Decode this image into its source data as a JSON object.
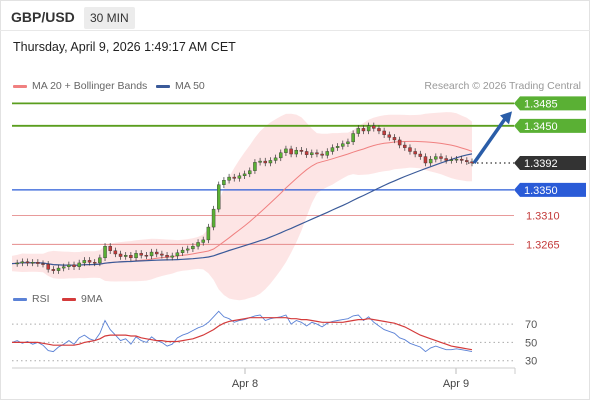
{
  "header": {
    "symbol": "GBP/USD",
    "timeframe": "30 MIN",
    "datetime": "Thursday, April 9, 2026 1:49:17 AM CET"
  },
  "legend": {
    "ma20_label": "MA 20 + Bollinger Bands",
    "ma50_label": "MA 50",
    "credit": "Research © 2026 Trading Central"
  },
  "rsi_legend": {
    "rsi_label": "RSI",
    "ma_label": "9MA"
  },
  "colors": {
    "up": "#5ab034",
    "down": "#c33a3a",
    "support": "#2a5bd7",
    "resistance": "#5a9e1e",
    "ma20": "#f08080",
    "ma50": "#3a5a99",
    "band": "#fde0e0",
    "rsi": "#5b82d6",
    "rsi_ma": "#d43b3b"
  },
  "chart_data": [
    {
      "type": "line",
      "title": "GBP/USD 30 MIN",
      "ylim": [
        1.3225,
        1.3495
      ],
      "x_tick_labels": [
        "Apr 8",
        "Apr 9"
      ],
      "price_levels": [
        {
          "value": 1.3485,
          "label": "1.3485",
          "kind": "resistance"
        },
        {
          "value": 1.345,
          "label": "1.3450",
          "kind": "resistance"
        },
        {
          "value": 1.3392,
          "label": "1.3392",
          "kind": "current"
        },
        {
          "value": 1.335,
          "label": "1.3350",
          "kind": "support"
        },
        {
          "value": 1.331,
          "label": "1.3310",
          "kind": "support-minor"
        },
        {
          "value": 1.3265,
          "label": "1.3265",
          "kind": "support-minor"
        }
      ],
      "price_path": [
        1.3235,
        1.3236,
        1.3238,
        1.3236,
        1.3237,
        1.3235,
        1.3234,
        1.3226,
        1.3224,
        1.3228,
        1.323,
        1.3233,
        1.323,
        1.3236,
        1.324,
        1.3237,
        1.3236,
        1.3244,
        1.3262,
        1.3255,
        1.325,
        1.3246,
        1.3248,
        1.3244,
        1.3251,
        1.3248,
        1.3247,
        1.3253,
        1.325,
        1.3248,
        1.3245,
        1.3247,
        1.3252,
        1.3256,
        1.3258,
        1.3262,
        1.3268,
        1.3272,
        1.3292,
        1.332,
        1.3358,
        1.3365,
        1.337,
        1.3368,
        1.3372,
        1.3375,
        1.338,
        1.3393,
        1.3395,
        1.3392,
        1.3396,
        1.34,
        1.3408,
        1.3414,
        1.3406,
        1.3412,
        1.341,
        1.3405,
        1.3408,
        1.3406,
        1.3404,
        1.341,
        1.3416,
        1.3418,
        1.3422,
        1.3425,
        1.3438,
        1.3446,
        1.3442,
        1.345,
        1.3446,
        1.3442,
        1.3436,
        1.3432,
        1.3428,
        1.342,
        1.3416,
        1.341,
        1.3406,
        1.3402,
        1.3392,
        1.3398,
        1.3402,
        1.3399,
        1.3396,
        1.3397,
        1.3398,
        1.3396,
        1.3394,
        1.3392
      ],
      "forecast_arrow": {
        "from": 1.3392,
        "to": 1.3485
      }
    },
    {
      "type": "line",
      "title": "RSI",
      "ylim": [
        22,
        80
      ],
      "y_ticks": [
        70,
        50,
        30
      ],
      "series": [
        {
          "name": "RSI",
          "values": [
            50,
            52,
            49,
            51,
            48,
            50,
            47,
            41,
            40,
            45,
            48,
            52,
            48,
            55,
            58,
            54,
            52,
            60,
            74,
            64,
            58,
            52,
            54,
            48,
            56,
            52,
            50,
            56,
            52,
            50,
            46,
            48,
            55,
            58,
            60,
            63,
            66,
            68,
            72,
            78,
            84,
            78,
            76,
            72,
            74,
            75,
            77,
            79,
            80,
            74,
            76,
            77,
            78,
            80,
            70,
            74,
            72,
            68,
            72,
            70,
            67,
            71,
            73,
            74,
            75,
            76,
            79,
            80,
            74,
            78,
            72,
            68,
            64,
            62,
            60,
            55,
            53,
            49,
            47,
            45,
            40,
            44,
            46,
            44,
            42,
            42,
            43,
            42,
            41,
            40
          ]
        },
        {
          "name": "9MA",
          "values": [
            50,
            50,
            50,
            50,
            50,
            50,
            49,
            48,
            47,
            47,
            47,
            47,
            47,
            48,
            50,
            51,
            52,
            54,
            57,
            58,
            58,
            58,
            58,
            57,
            57,
            55,
            54,
            53,
            52,
            52,
            51,
            51,
            51,
            52,
            53,
            54,
            56,
            58,
            61,
            64,
            68,
            71,
            73,
            74,
            75,
            76,
            77,
            77,
            77,
            77,
            77,
            77,
            77,
            77,
            76,
            76,
            75,
            75,
            74,
            73,
            72,
            72,
            72,
            72,
            72,
            73,
            74,
            75,
            75,
            76,
            75,
            74,
            73,
            72,
            71,
            69,
            67,
            64,
            61,
            58,
            56,
            54,
            52,
            50,
            48,
            46,
            45,
            44,
            43,
            42
          ]
        }
      ]
    }
  ]
}
